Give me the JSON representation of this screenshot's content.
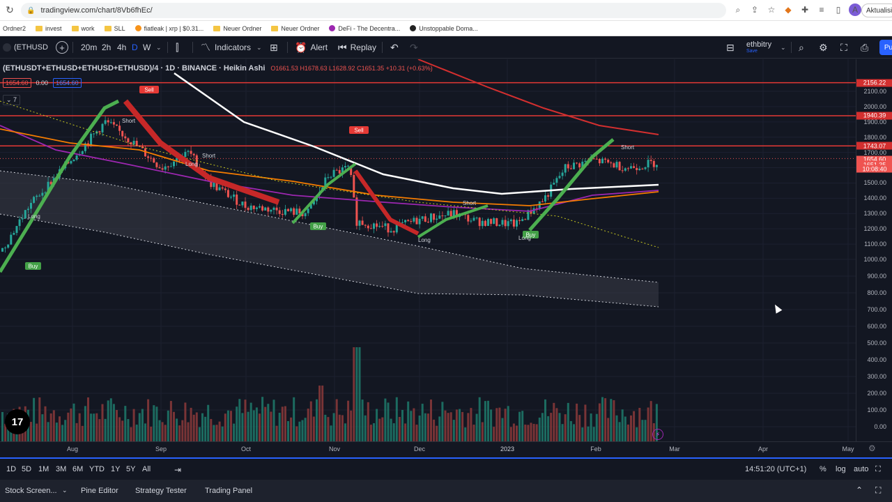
{
  "browser": {
    "url": "tradingview.com/chart/8Vb6fhEc/",
    "profile_initial": "A",
    "update_label": "Aktualisi"
  },
  "bookmarks": [
    {
      "label": "Ordner2",
      "type": "plain"
    },
    {
      "label": "invest",
      "type": "folder"
    },
    {
      "label": "work",
      "type": "folder"
    },
    {
      "label": "SLL",
      "type": "folder"
    },
    {
      "label": "fiatleak | xrp | $0.31...",
      "type": "site"
    },
    {
      "label": "Neuer Ordner",
      "type": "folder"
    },
    {
      "label": "Neuer Ordner",
      "type": "folder"
    },
    {
      "label": "DeFi - The Decentra...",
      "type": "site"
    },
    {
      "label": "Unstoppable Doma...",
      "type": "site"
    }
  ],
  "toolbar": {
    "symbol": "(ETHUSD",
    "timeframes": [
      "20m",
      "2h",
      "4h",
      "D",
      "W"
    ],
    "active_timeframe": "D",
    "indicators_label": "Indicators",
    "alert_label": "Alert",
    "replay_label": "Replay",
    "account_name": "ethbitry",
    "account_sub": "Save",
    "publish_label": "Pu"
  },
  "legend": {
    "title": "(ETHUSDT+ETHUSD+ETHUSD+ETHUSD)/4 · 1D · BINANCE · Heikin Ashi",
    "open": "O1661.53",
    "high": "H1678.63",
    "low": "L1628.92",
    "close": "C1651.35",
    "change": "+10.31 (+0.63%)",
    "sell_price": "1654.60",
    "spread": "0.00",
    "buy_price": "1654.60",
    "indicator_count": "7"
  },
  "signals": {
    "sell": "Sell",
    "buy": "Buy",
    "short": "Short",
    "long": "Long"
  },
  "chart_data": {
    "type": "candlestick",
    "price_ticks": [
      "2100.00",
      "2000.00",
      "1900.00",
      "1800.00",
      "1700.00",
      "1600.00",
      "1500.00",
      "1400.00",
      "1300.00",
      "1200.00",
      "1100.00",
      "1000.00",
      "900.00",
      "800.00",
      "700.00",
      "600.00",
      "500.00",
      "400.00",
      "300.00",
      "200.00",
      "100.00",
      "0.00"
    ],
    "price_labels": [
      {
        "value": "2156.22",
        "color": "#d32f2f"
      },
      {
        "value": "1940.39",
        "color": "#d32f2f"
      },
      {
        "value": "1743.07",
        "color": "#d32f2f"
      },
      {
        "value": "1654.60",
        "color": "#ef5350"
      },
      {
        "value": "1651.35",
        "color": "#ef5350"
      },
      {
        "value": "10:08:40",
        "color": "#ef5350"
      }
    ],
    "horizontal_levels": [
      2156.22,
      1940.39,
      1743.07
    ],
    "x_labels": [
      "Aug",
      "Sep",
      "Oct",
      "Nov",
      "Dec",
      "2023",
      "Feb",
      "Mar",
      "Apr",
      "May"
    ],
    "ylim": [
      0,
      2200
    ]
  },
  "range_bar": {
    "ranges": [
      "1D",
      "5D",
      "1M",
      "3M",
      "6M",
      "YTD",
      "1Y",
      "5Y",
      "All"
    ],
    "clock": "14:51:20 (UTC+1)",
    "percent": "%",
    "log": "log",
    "auto": "auto"
  },
  "bottom_panel": {
    "tabs": [
      "Stock Screen...",
      "Pine Editor",
      "Strategy Tester",
      "Trading Panel"
    ]
  },
  "logo_text": "17"
}
